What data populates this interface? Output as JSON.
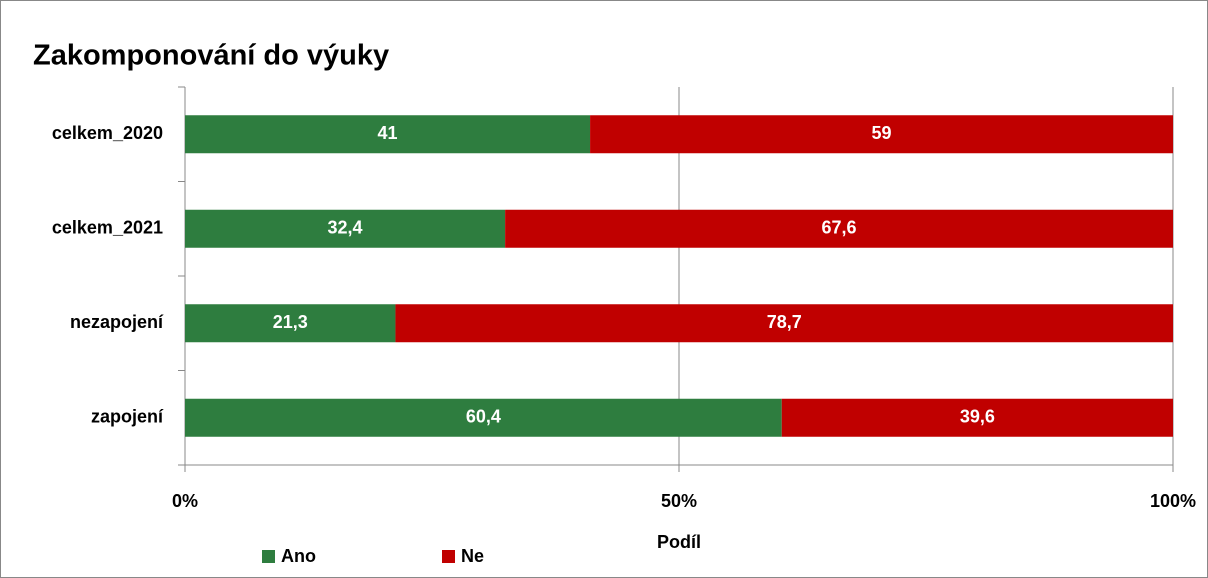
{
  "chart_data": {
    "type": "stacked_barh",
    "title": "Zakomponování do výuky",
    "categories": [
      "celkem_2020",
      "celkem_2021",
      "nezapojení",
      "zapojení"
    ],
    "series": [
      {
        "name": "Ano",
        "color": "#2e7d3f",
        "values": [
          41,
          32.4,
          21.3,
          60.4
        ],
        "value_labels": [
          "41",
          "32,4",
          "21,3",
          "60,4"
        ]
      },
      {
        "name": "Ne",
        "color": "#c00000",
        "values": [
          59,
          67.6,
          78.7,
          39.6
        ],
        "value_labels": [
          "59",
          "67,6",
          "78,7",
          "39,6"
        ]
      }
    ],
    "xlabel": "Podíl",
    "xlim": [
      0,
      100
    ],
    "xticks": [
      {
        "value": 0,
        "label": "0%"
      },
      {
        "value": 50,
        "label": "50%"
      },
      {
        "value": 100,
        "label": "100%"
      }
    ],
    "grid": true,
    "legend": "bottom-left"
  }
}
